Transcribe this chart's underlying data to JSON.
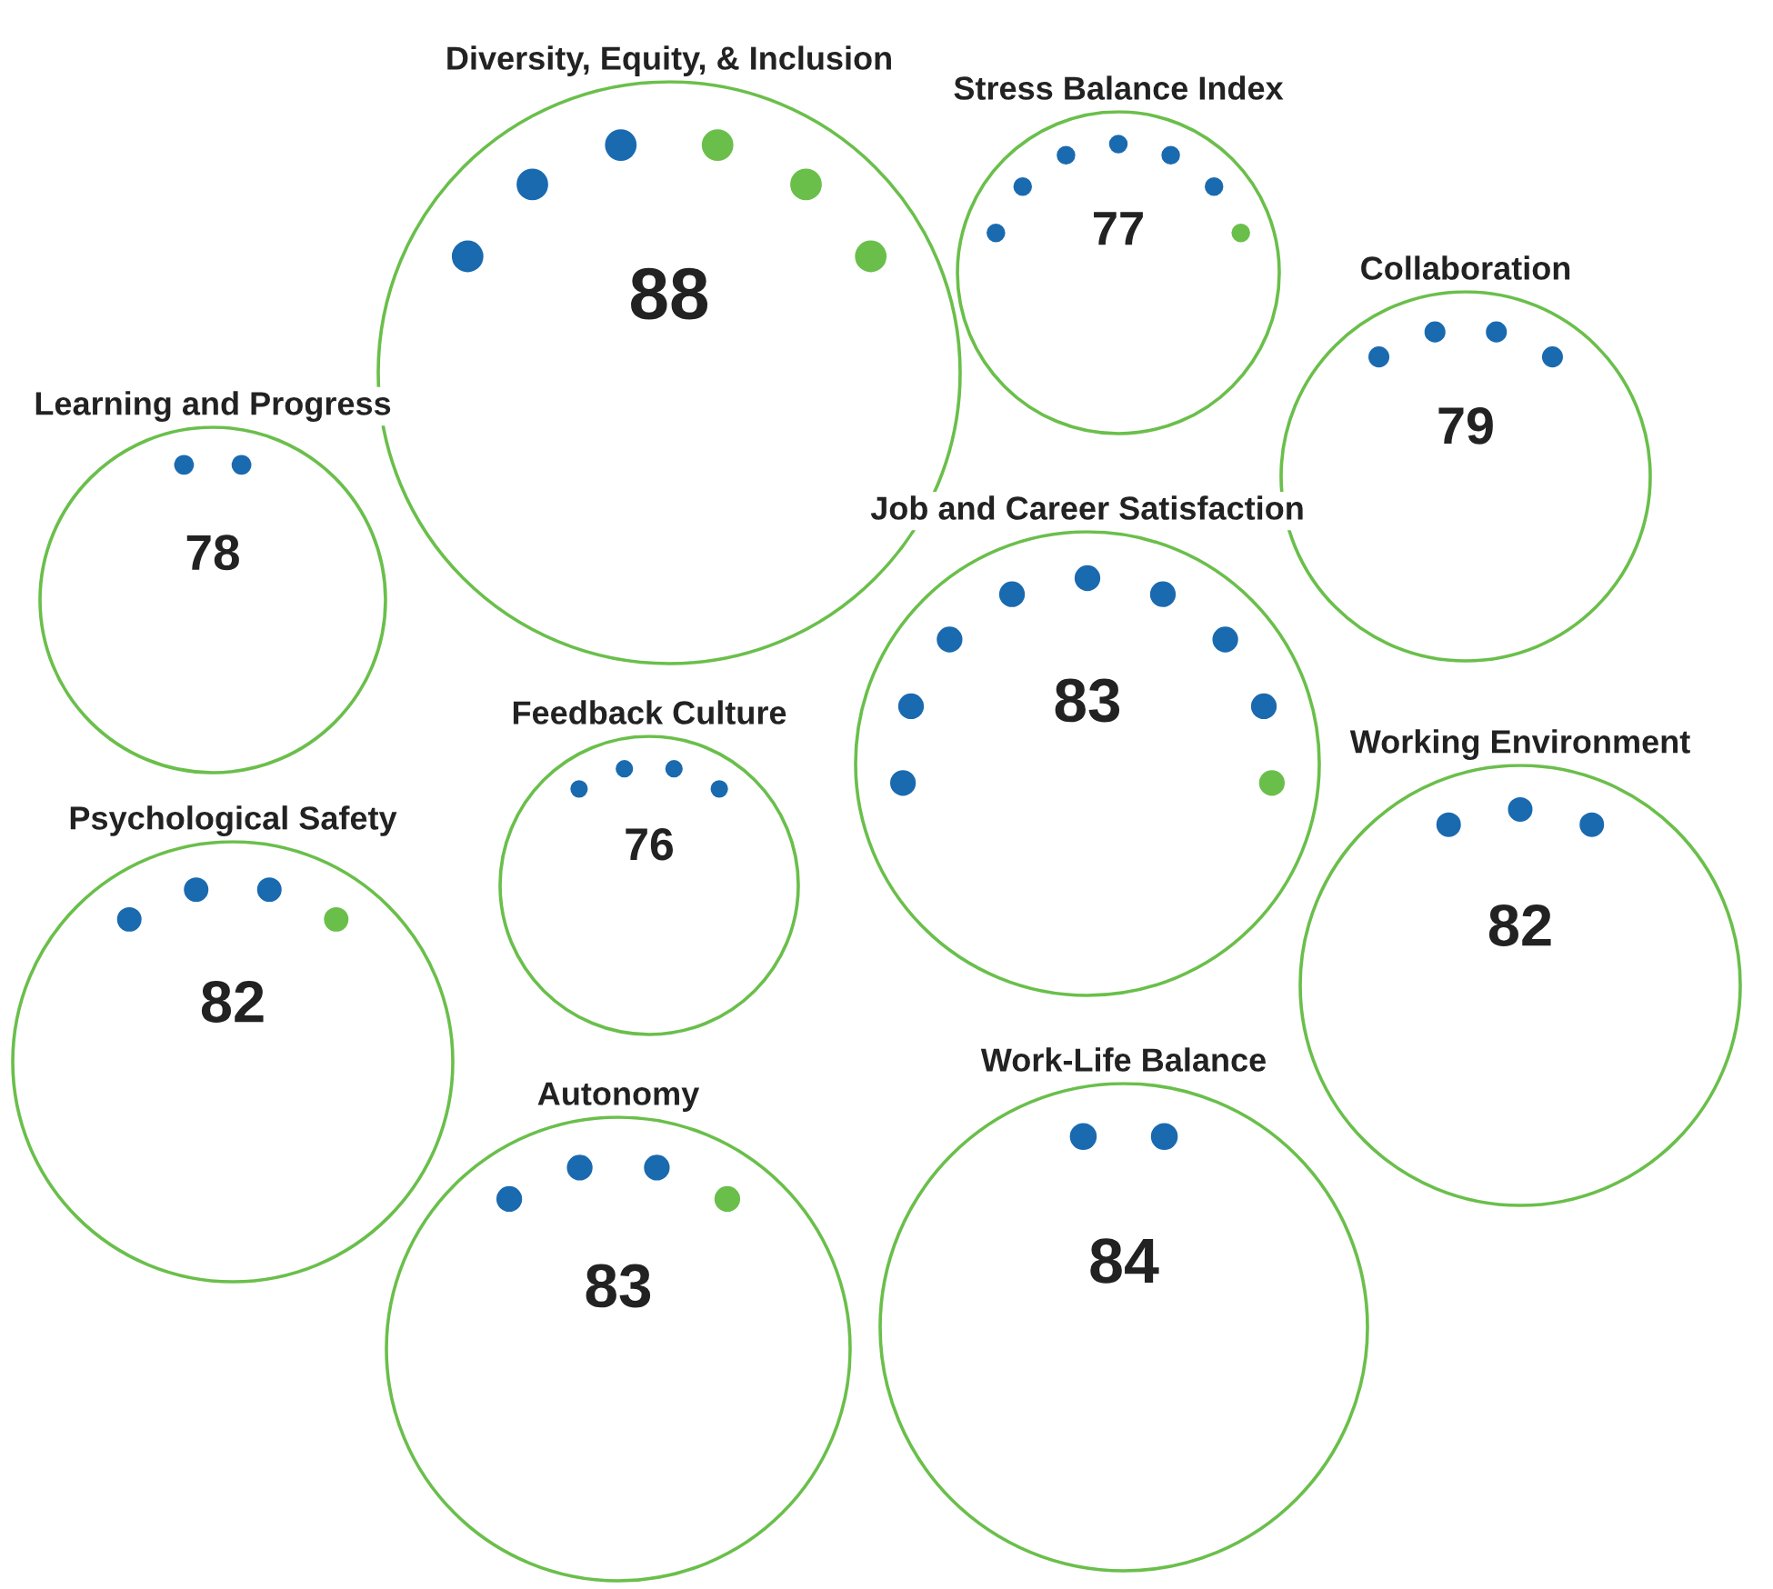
{
  "chart_data": {
    "type": "other",
    "categories": [
      "Diversity, Equity, & Inclusion",
      "Stress Balance Index",
      "Collaboration",
      "Learning and Progress",
      "Job and Career Satisfaction",
      "Feedback Culture",
      "Working Environment",
      "Psychological Safety",
      "Autonomy",
      "Work-Life Balance"
    ],
    "values": [
      88,
      77,
      79,
      78,
      83,
      76,
      82,
      82,
      83,
      84
    ],
    "color": "#6abf4b",
    "data_labels": true
  }
}
